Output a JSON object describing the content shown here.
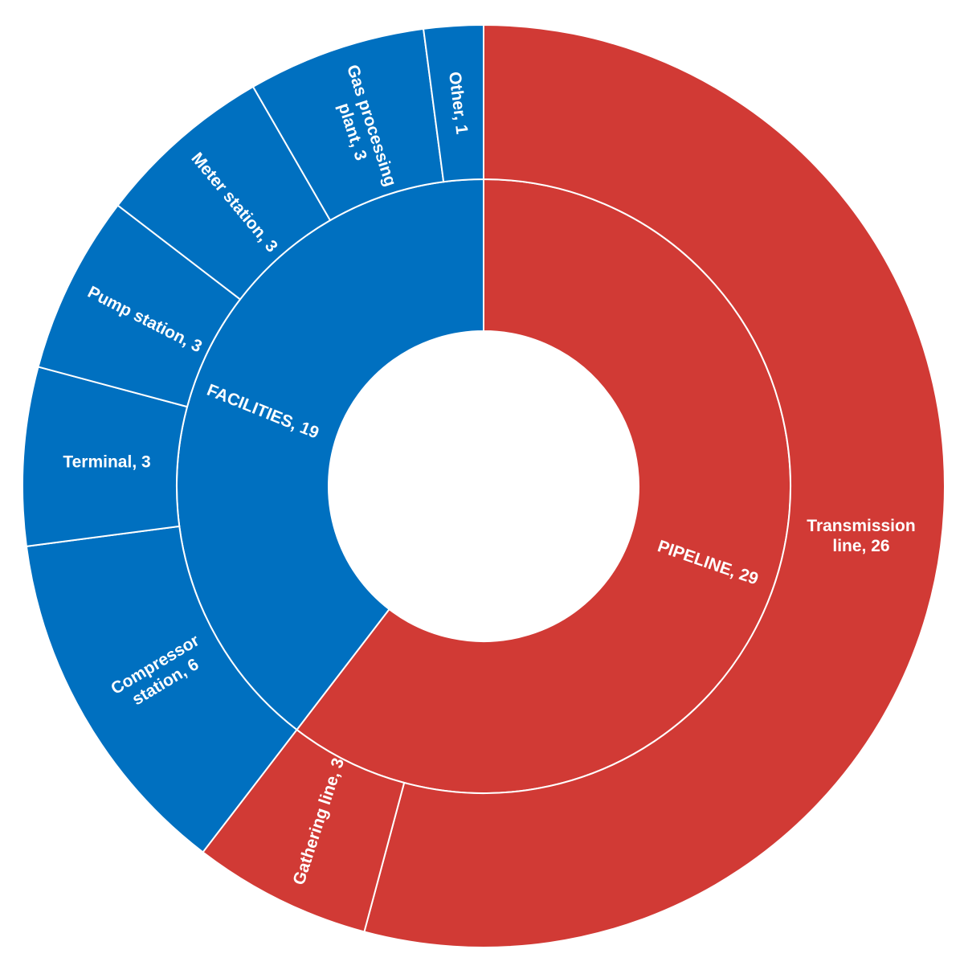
{
  "chart_data": {
    "type": "sunburst",
    "title": "",
    "colors": {
      "PIPELINE": "#D13A35",
      "FACILITIES": "#0070C0",
      "separator": "#ffffff"
    },
    "inner": [
      {
        "name": "PIPELINE",
        "value": 29,
        "label": "PIPELINE,  29"
      },
      {
        "name": "FACILITIES",
        "value": 19,
        "label": "FACILITIES,  19"
      }
    ],
    "outer": [
      {
        "parent": "PIPELINE",
        "name": "Transmission line",
        "value": 26,
        "label": [
          "Transmission",
          "line, 26"
        ]
      },
      {
        "parent": "PIPELINE",
        "name": "Gathering line",
        "value": 3,
        "label": [
          "Gathering line, 3"
        ]
      },
      {
        "parent": "FACILITIES",
        "name": "Compressor station",
        "value": 6,
        "label": [
          "Compressor",
          "station, 6"
        ]
      },
      {
        "parent": "FACILITIES",
        "name": "Terminal",
        "value": 3,
        "label": [
          "Terminal, 3"
        ]
      },
      {
        "parent": "FACILITIES",
        "name": "Pump station",
        "value": 3,
        "label": [
          "Pump station, 3"
        ]
      },
      {
        "parent": "FACILITIES",
        "name": "Meter station",
        "value": 3,
        "label": [
          "Meter station, 3"
        ]
      },
      {
        "parent": "FACILITIES",
        "name": "Gas processing plant",
        "value": 3,
        "label": [
          "Gas processing",
          "plant, 3"
        ]
      },
      {
        "parent": "FACILITIES",
        "name": "Other",
        "value": 1,
        "label": [
          "Other, 1"
        ]
      }
    ]
  }
}
